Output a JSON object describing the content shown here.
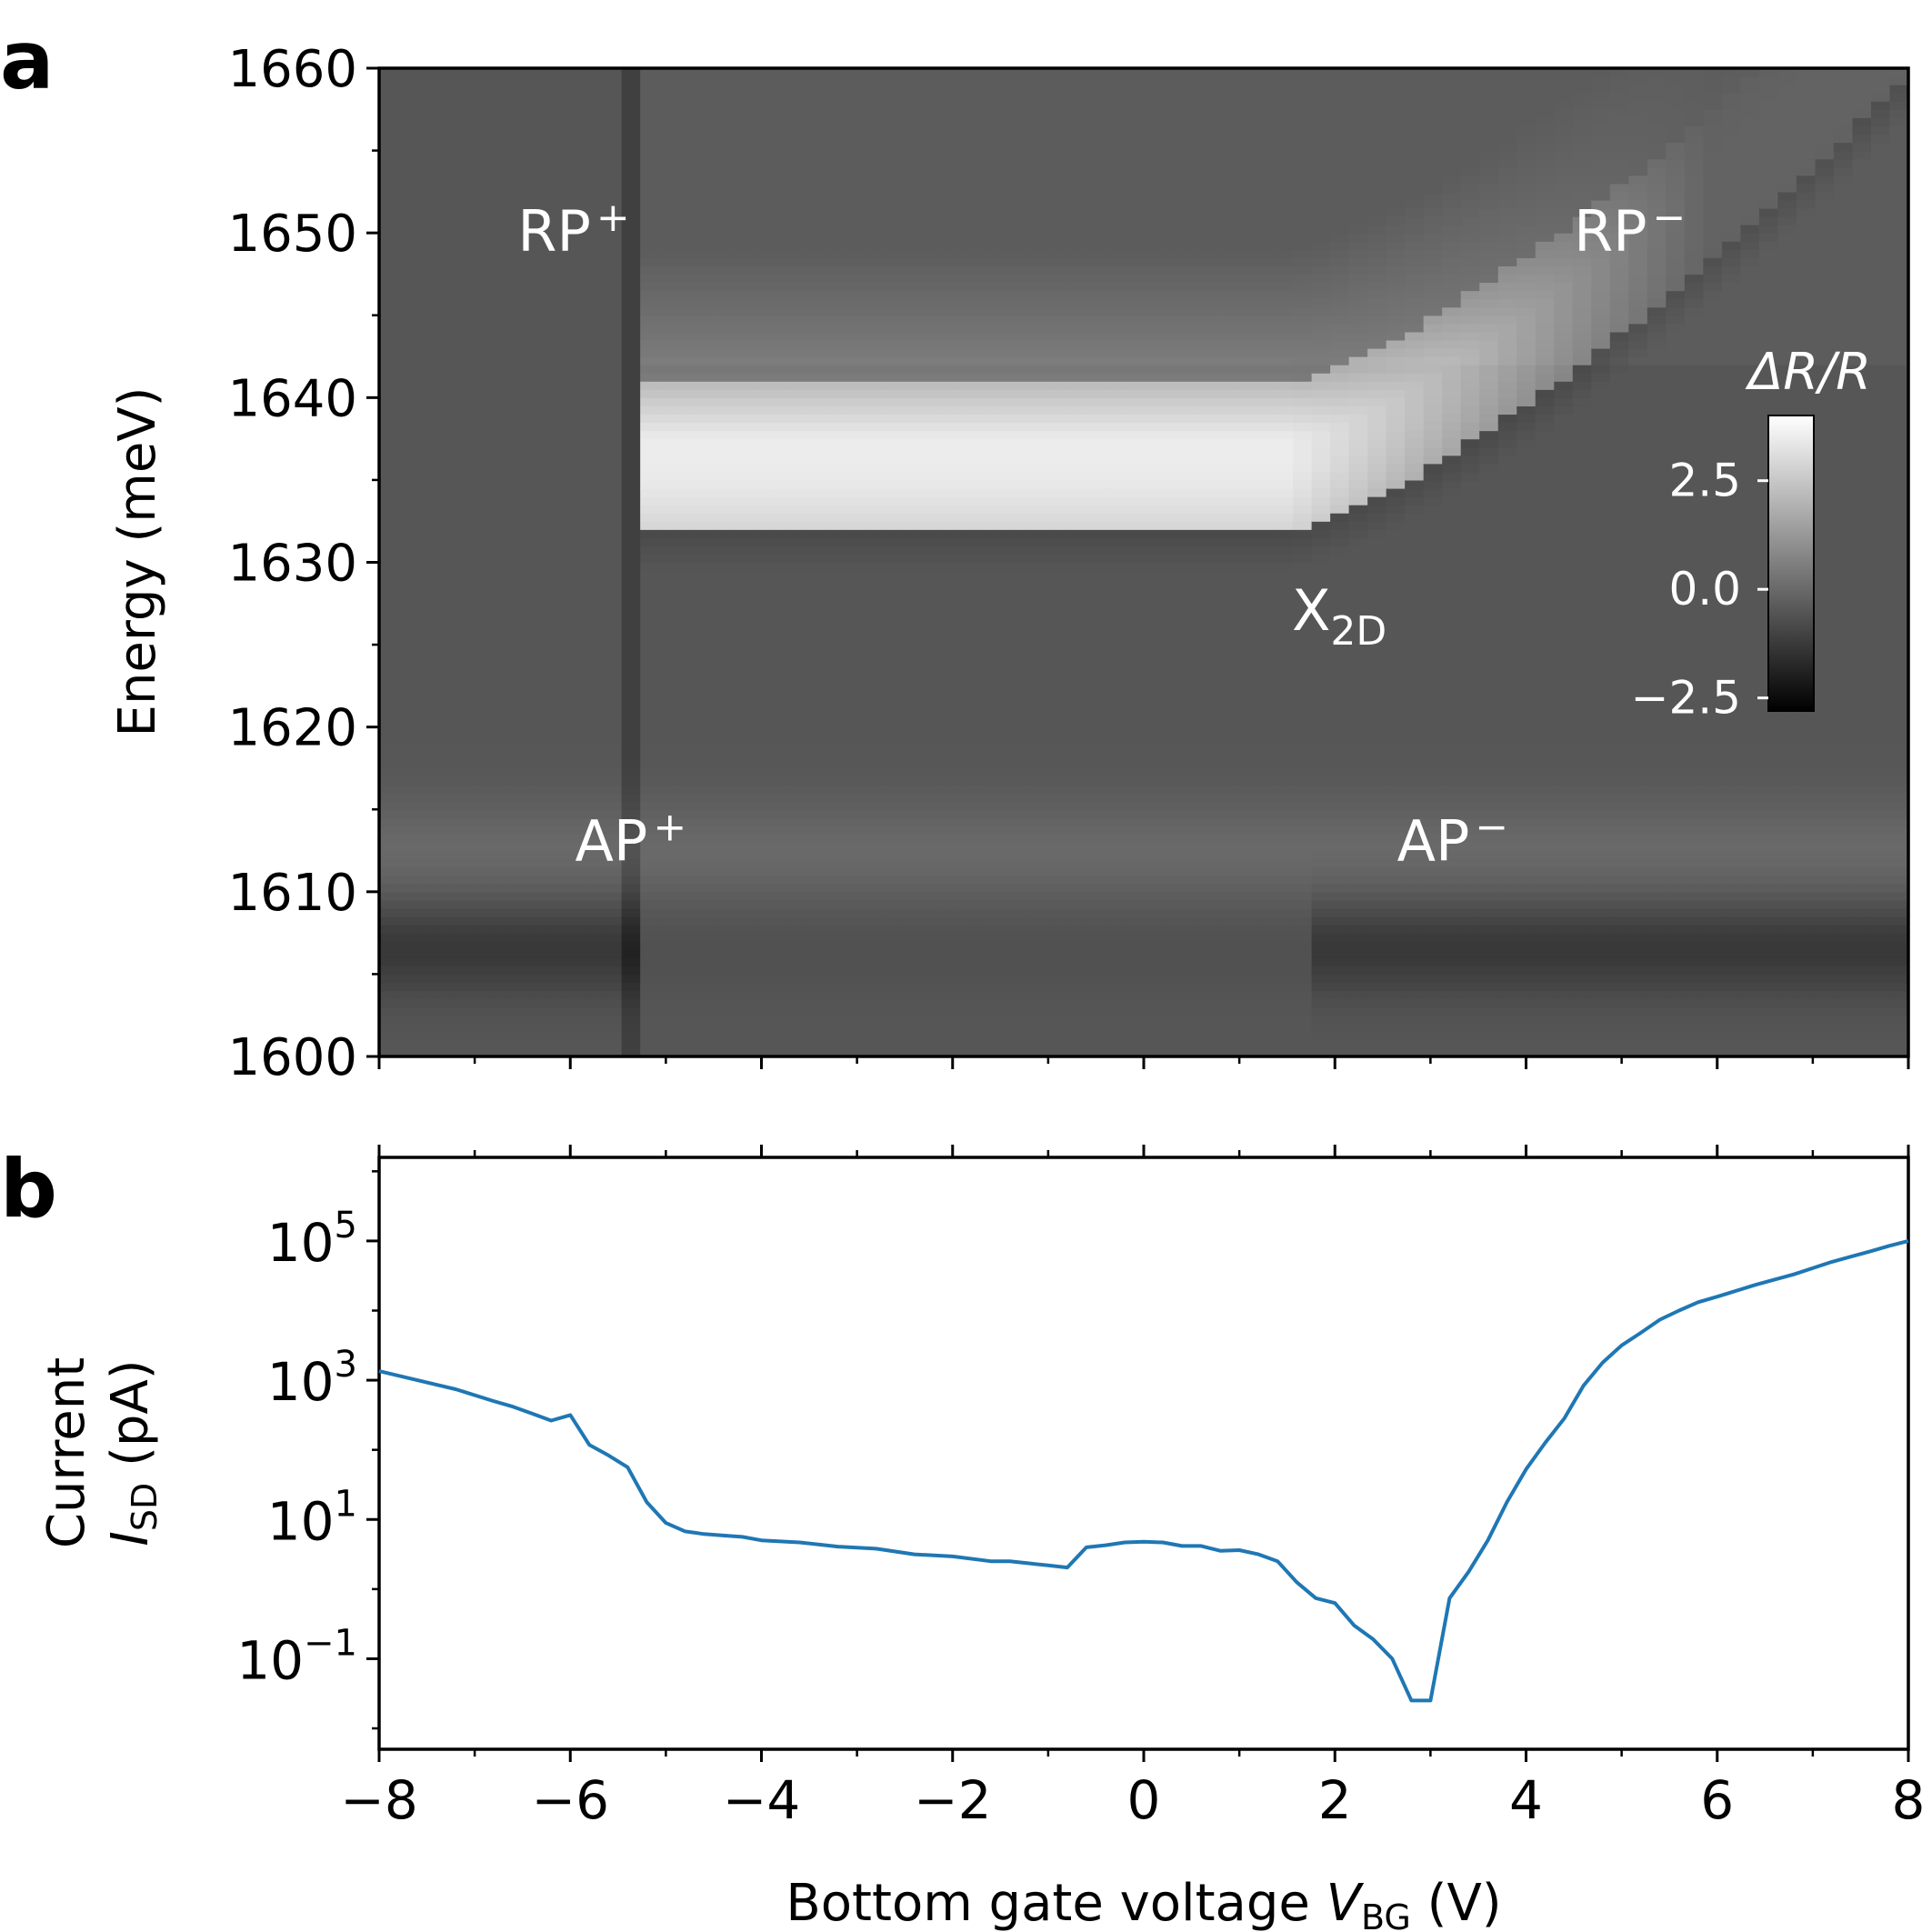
{
  "chart_data": [
    {
      "panel_label": "a",
      "type": "heatmap",
      "xlabel": "",
      "ylabel": "Energy (meV)",
      "xlim": [
        -8,
        8
      ],
      "ylim": [
        1600,
        1660
      ],
      "yticks": [
        {
          "value": 1600,
          "label": "1600"
        },
        {
          "value": 1610,
          "label": "1610"
        },
        {
          "value": 1620,
          "label": "1620"
        },
        {
          "value": 1630,
          "label": "1630"
        },
        {
          "value": 1640,
          "label": "1640"
        },
        {
          "value": 1650,
          "label": "1650"
        },
        {
          "value": 1660,
          "label": "1660"
        }
      ],
      "colorbar": {
        "title": "ΔR/R",
        "range": [
          -2.8,
          4.0
        ],
        "ticks": [
          {
            "value": -2.5,
            "label": "−2.5"
          },
          {
            "value": 0.0,
            "label": "0.0"
          },
          {
            "value": 2.5,
            "label": "2.5"
          }
        ]
      },
      "features": [
        {
          "name": "RP⁺",
          "label": "RP",
          "sup": "+",
          "x": -6.55,
          "y": 1650
        },
        {
          "name": "RP⁻",
          "label": "RP",
          "sup": "−",
          "x": 4.5,
          "y": 1650
        },
        {
          "name": "X2D",
          "label": "X",
          "sub": "2D",
          "x": 1.55,
          "y": 1627
        },
        {
          "name": "AP⁺",
          "label": "AP",
          "sup": "+",
          "x": -5.95,
          "y": 1613
        },
        {
          "name": "AP⁻",
          "label": "AP",
          "sup": "−",
          "x": 2.65,
          "y": 1613
        }
      ],
      "map_model": {
        "background": -0.5,
        "x2d_band": {
          "x_start": -5.25,
          "x_flat_end": 1.5,
          "center": 1634.5,
          "edge_top": 1641,
          "edge_bottom": 1632,
          "peak": 4.0
        },
        "rp_minus_rise": {
          "x_start": 1.5,
          "x_end": 8,
          "center_end": 1662
        },
        "ap_band": {
          "center": 1612.5,
          "amplitude": 0.5
        },
        "dark_band": {
          "center": 1606.5,
          "amplitude": -0.8
        }
      }
    },
    {
      "panel_label": "b",
      "type": "line",
      "scale": "log",
      "xlabel": "Bottom gate voltage V_BG (V)",
      "xlabel_parts": {
        "main": "Bottom gate voltage ",
        "var": "V",
        "sub": "BG",
        "unit": " (V)"
      },
      "ylabel_line1": "Current",
      "ylabel_parts": {
        "var": "I",
        "sub": "SD",
        "unit": " (pA)"
      },
      "xlim": [
        -8,
        8
      ],
      "ylim_log10": [
        -2.3,
        6.2
      ],
      "xticks": [
        {
          "value": -8,
          "label": "−8"
        },
        {
          "value": -6,
          "label": "−6"
        },
        {
          "value": -4,
          "label": "−4"
        },
        {
          "value": -2,
          "label": "−2"
        },
        {
          "value": 0,
          "label": "0"
        },
        {
          "value": 2,
          "label": "2"
        },
        {
          "value": 4,
          "label": "4"
        },
        {
          "value": 6,
          "label": "6"
        },
        {
          "value": 8,
          "label": "8"
        }
      ],
      "yticks": [
        {
          "exp": -1,
          "base": "10",
          "sup": "−1"
        },
        {
          "exp": 1,
          "base": "10",
          "sup": "1"
        },
        {
          "exp": 3,
          "base": "10",
          "sup": "3"
        },
        {
          "exp": 5,
          "base": "10",
          "sup": "5"
        }
      ],
      "series": [
        {
          "name": "I_SD",
          "color": "#1f77b4",
          "x": [
            -8,
            -7.6,
            -7.2,
            -6.8,
            -6.6,
            -6.4,
            -6.2,
            -6.0,
            -5.8,
            -5.6,
            -5.4,
            -5.2,
            -5.0,
            -4.8,
            -4.6,
            -4.4,
            -4.2,
            -4.0,
            -3.6,
            -3.2,
            -2.8,
            -2.4,
            -2.0,
            -1.6,
            -1.4,
            -1.2,
            -1.0,
            -0.8,
            -0.6,
            -0.4,
            -0.2,
            0.0,
            0.2,
            0.4,
            0.6,
            0.8,
            1.0,
            1.2,
            1.4,
            1.6,
            1.8,
            2.0,
            2.2,
            2.4,
            2.6,
            2.8,
            3.0,
            3.2,
            3.4,
            3.6,
            3.8,
            4.0,
            4.2,
            4.4,
            4.6,
            4.8,
            5.0,
            5.2,
            5.4,
            5.6,
            5.8,
            6.0,
            6.4,
            6.8,
            7.2,
            7.6,
            7.8,
            8.0
          ],
          "log10_y": [
            3.13,
            3.0,
            2.87,
            2.7,
            2.62,
            2.52,
            2.42,
            2.5,
            2.07,
            1.92,
            1.75,
            1.25,
            0.95,
            0.83,
            0.79,
            0.77,
            0.75,
            0.7,
            0.67,
            0.61,
            0.58,
            0.5,
            0.47,
            0.4,
            0.4,
            0.37,
            0.34,
            0.31,
            0.6,
            0.63,
            0.67,
            0.68,
            0.67,
            0.62,
            0.62,
            0.55,
            0.56,
            0.5,
            0.4,
            0.1,
            -0.13,
            -0.2,
            -0.52,
            -0.72,
            -1.0,
            -1.6,
            -1.6,
            -0.13,
            0.25,
            0.7,
            1.25,
            1.72,
            2.1,
            2.45,
            2.92,
            3.25,
            3.5,
            3.68,
            3.87,
            4.0,
            4.12,
            4.2,
            4.37,
            4.52,
            4.7,
            4.85,
            4.93,
            5.0
          ]
        }
      ]
    }
  ]
}
